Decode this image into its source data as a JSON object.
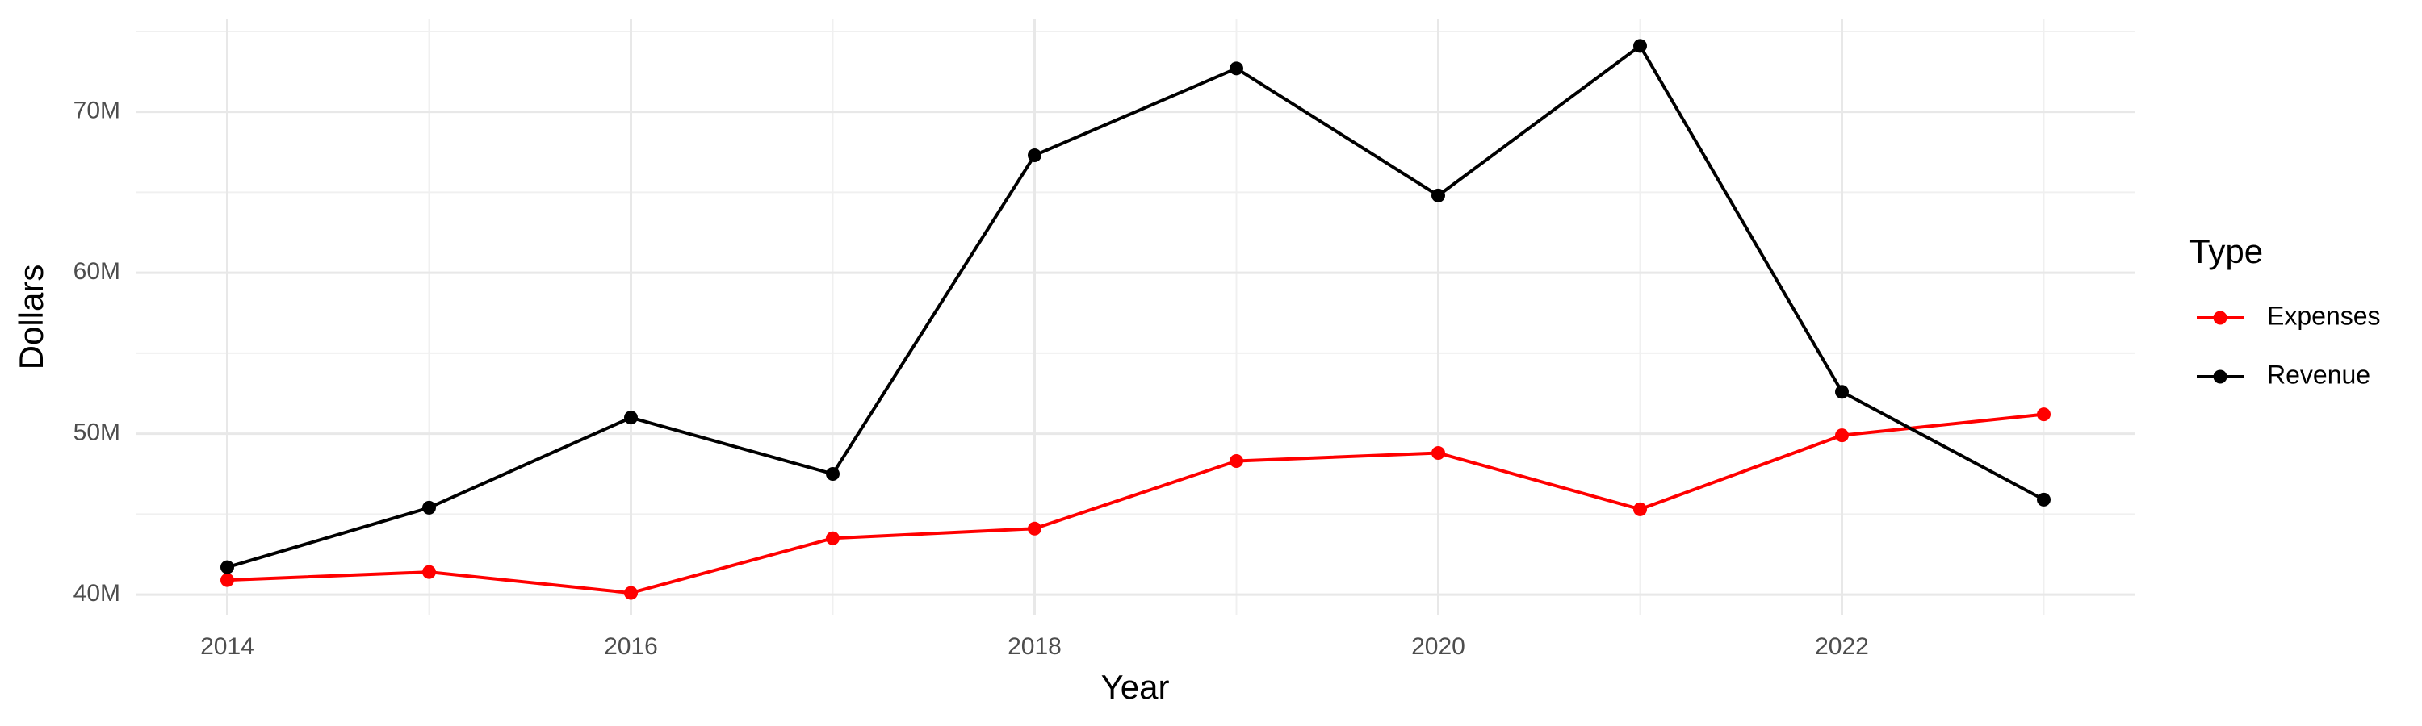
{
  "chart_data": {
    "type": "line",
    "x_label": "Year",
    "y_label": "Dollars",
    "legend_title": "Type",
    "x": [
      2014,
      2015,
      2016,
      2017,
      2018,
      2019,
      2020,
      2021,
      2022,
      2023
    ],
    "series": [
      {
        "name": "Expenses",
        "color": "#ff0000",
        "values": [
          40900000,
          41400000,
          40100000,
          43500000,
          44100000,
          48300000,
          48800000,
          45300000,
          49900000,
          51200000
        ]
      },
      {
        "name": "Revenue",
        "color": "#000000",
        "values": [
          41700000,
          45400000,
          51000000,
          47500000,
          67300000,
          72700000,
          64800000,
          74100000,
          52600000,
          45900000
        ]
      }
    ],
    "xlim": [
      2013.55,
      2023.45
    ],
    "xticks": [
      2014,
      2016,
      2018,
      2020,
      2022
    ],
    "xminor": [
      2015,
      2017,
      2019,
      2021,
      2023
    ],
    "ylim": [
      38700000,
      75800000
    ],
    "yticks": [
      {
        "value": 40000000,
        "label": "40M"
      },
      {
        "value": 50000000,
        "label": "50M"
      },
      {
        "value": 60000000,
        "label": "60M"
      },
      {
        "value": 70000000,
        "label": "70M"
      }
    ],
    "yminor": [
      45000000,
      55000000,
      65000000,
      75000000
    ],
    "grid": true,
    "legend": "right"
  }
}
